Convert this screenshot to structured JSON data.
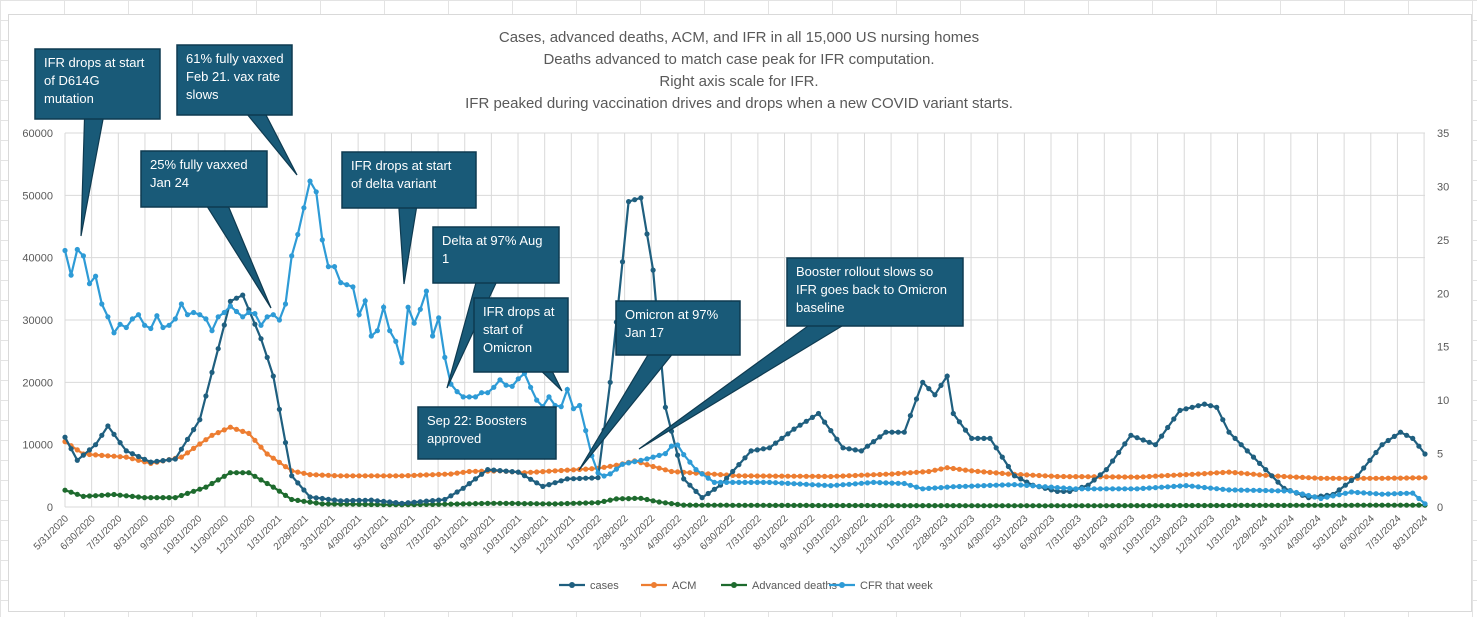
{
  "chart_data": {
    "type": "line",
    "title_lines": [
      "Cases, advanced deaths, ACM, and IFR in all 15,000 US nursing homes",
      "Deaths advanced to match case peak for IFR computation.",
      "Right axis scale for IFR.",
      "IFR peaked during vaccination drives and drops when a new COVID variant starts."
    ],
    "y_left": {
      "min": 0,
      "max": 60000,
      "ticks": [
        0,
        10000,
        20000,
        30000,
        40000,
        50000,
        60000
      ]
    },
    "y_right": {
      "min": 0,
      "max": 35,
      "ticks": [
        0,
        5,
        10,
        15,
        20,
        25,
        30,
        35
      ]
    },
    "x_tick_labels": [
      "5/31/2020",
      "6/30/2020",
      "7/31/2020",
      "8/31/2020",
      "9/30/2020",
      "10/31/2020",
      "11/30/2020",
      "12/31/2020",
      "1/31/2021",
      "2/28/2021",
      "3/31/2021",
      "4/30/2021",
      "5/31/2021",
      "6/30/2021",
      "7/31/2021",
      "8/31/2021",
      "9/30/2021",
      "10/31/2021",
      "11/30/2021",
      "12/31/2021",
      "1/31/2022",
      "2/28/2022",
      "3/31/2022",
      "4/30/2022",
      "5/31/2022",
      "6/30/2022",
      "7/31/2022",
      "8/31/2022",
      "9/30/2022",
      "10/31/2022",
      "11/30/2022",
      "12/31/2022",
      "1/31/2023",
      "2/28/2023",
      "3/31/2023",
      "4/30/2023",
      "5/31/2023",
      "6/30/2023",
      "7/31/2023",
      "8/31/2023",
      "9/30/2023",
      "10/31/2023",
      "11/30/2023",
      "12/31/2023",
      "1/31/2024",
      "2/29/2024",
      "3/31/2024",
      "4/30/2024",
      "5/31/2024",
      "6/30/2024",
      "7/31/2024",
      "8/31/2024"
    ],
    "grid": true,
    "legend_position": "bottom",
    "series": [
      {
        "name": "cases",
        "axis": "left",
        "color": "#1f5f7f",
        "keyframes": [
          [
            0,
            11200
          ],
          [
            2,
            7500
          ],
          [
            5,
            10000
          ],
          [
            7,
            13000
          ],
          [
            10,
            9000
          ],
          [
            14,
            7200
          ],
          [
            18,
            7700
          ],
          [
            22,
            14000
          ],
          [
            27,
            33000
          ],
          [
            29,
            34000
          ],
          [
            32,
            27000
          ],
          [
            34,
            21000
          ],
          [
            37,
            5000
          ],
          [
            40,
            1600
          ],
          [
            45,
            1000
          ],
          [
            50,
            1100
          ],
          [
            55,
            600
          ],
          [
            62,
            1200
          ],
          [
            65,
            3000
          ],
          [
            69,
            6000
          ],
          [
            74,
            5600
          ],
          [
            78,
            3300
          ],
          [
            82,
            4500
          ],
          [
            87,
            4700
          ],
          [
            89,
            20000
          ],
          [
            92,
            49000
          ],
          [
            94,
            49600
          ],
          [
            96,
            38000
          ],
          [
            98,
            16000
          ],
          [
            101,
            4500
          ],
          [
            104,
            1500
          ],
          [
            107,
            3500
          ],
          [
            112,
            9000
          ],
          [
            115,
            9500
          ],
          [
            119,
            12500
          ],
          [
            123,
            15000
          ],
          [
            127,
            9500
          ],
          [
            130,
            9000
          ],
          [
            134,
            12000
          ],
          [
            137,
            12000
          ],
          [
            140,
            20000
          ],
          [
            142,
            18000
          ],
          [
            144,
            21000
          ],
          [
            145,
            15000
          ],
          [
            148,
            11000
          ],
          [
            151,
            11000
          ],
          [
            155,
            5000
          ],
          [
            158,
            3500
          ],
          [
            162,
            2500
          ],
          [
            164,
            2500
          ],
          [
            167,
            3500
          ],
          [
            170,
            6000
          ],
          [
            174,
            11500
          ],
          [
            178,
            10000
          ],
          [
            182,
            15500
          ],
          [
            186,
            16500
          ],
          [
            188,
            16000
          ],
          [
            190,
            12000
          ],
          [
            195,
            7000
          ],
          [
            199,
            3000
          ],
          [
            203,
            1500
          ],
          [
            207,
            2000
          ],
          [
            211,
            5000
          ],
          [
            215,
            10000
          ],
          [
            218,
            12000
          ],
          [
            220,
            11000
          ],
          [
            222,
            8500
          ]
        ]
      },
      {
        "name": "ACM",
        "axis": "left",
        "color": "#ed7d31",
        "keyframes": [
          [
            0,
            10500
          ],
          [
            3,
            8500
          ],
          [
            10,
            8000
          ],
          [
            14,
            7000
          ],
          [
            19,
            8000
          ],
          [
            24,
            11500
          ],
          [
            27,
            12800
          ],
          [
            30,
            11800
          ],
          [
            33,
            8500
          ],
          [
            37,
            5800
          ],
          [
            40,
            5200
          ],
          [
            45,
            5000
          ],
          [
            55,
            5000
          ],
          [
            63,
            5300
          ],
          [
            66,
            5700
          ],
          [
            71,
            5800
          ],
          [
            75,
            5500
          ],
          [
            80,
            5800
          ],
          [
            87,
            6200
          ],
          [
            90,
            6700
          ],
          [
            93,
            7400
          ],
          [
            96,
            6500
          ],
          [
            99,
            5700
          ],
          [
            110,
            5000
          ],
          [
            125,
            4900
          ],
          [
            135,
            5300
          ],
          [
            141,
            5700
          ],
          [
            144,
            6300
          ],
          [
            148,
            5800
          ],
          [
            154,
            5300
          ],
          [
            162,
            4900
          ],
          [
            175,
            4800
          ],
          [
            185,
            5300
          ],
          [
            190,
            5600
          ],
          [
            197,
            5000
          ],
          [
            205,
            4600
          ],
          [
            215,
            4600
          ],
          [
            222,
            4700
          ]
        ]
      },
      {
        "name": "Advanced deaths",
        "axis": "left",
        "color": "#1e6b2e",
        "keyframes": [
          [
            0,
            2700
          ],
          [
            3,
            1700
          ],
          [
            8,
            2000
          ],
          [
            13,
            1500
          ],
          [
            18,
            1500
          ],
          [
            23,
            3200
          ],
          [
            27,
            5500
          ],
          [
            30,
            5500
          ],
          [
            34,
            3200
          ],
          [
            37,
            1200
          ],
          [
            42,
            500
          ],
          [
            55,
            350
          ],
          [
            65,
            500
          ],
          [
            70,
            600
          ],
          [
            80,
            500
          ],
          [
            87,
            700
          ],
          [
            90,
            1300
          ],
          [
            94,
            1400
          ],
          [
            97,
            800
          ],
          [
            101,
            300
          ],
          [
            120,
            250
          ],
          [
            160,
            200
          ],
          [
            222,
            300
          ]
        ]
      },
      {
        "name": "CFR that week",
        "axis": "right",
        "color": "#2e9bd6",
        "keyframes": [
          [
            0,
            24
          ],
          [
            1,
            21.7
          ],
          [
            2,
            24.1
          ],
          [
            3,
            23.5
          ],
          [
            4,
            20.9
          ],
          [
            5,
            21.6
          ],
          [
            6,
            19
          ],
          [
            7,
            17.8
          ],
          [
            8,
            16.3
          ],
          [
            9,
            17.1
          ],
          [
            10,
            16.8
          ],
          [
            11,
            17.6
          ],
          [
            12,
            18
          ],
          [
            13,
            17
          ],
          [
            14,
            16.7
          ],
          [
            15,
            17.9
          ],
          [
            16,
            16.8
          ],
          [
            17,
            17
          ],
          [
            18,
            17.6
          ],
          [
            19,
            19
          ],
          [
            20,
            18
          ],
          [
            21,
            18.2
          ],
          [
            22,
            18
          ],
          [
            23,
            17.6
          ],
          [
            24,
            16.5
          ],
          [
            25,
            17.8
          ],
          [
            26,
            18.2
          ],
          [
            27,
            18.8
          ],
          [
            28,
            18.3
          ],
          [
            29,
            17.8
          ],
          [
            30,
            18.2
          ],
          [
            31,
            18.1
          ],
          [
            32,
            17
          ],
          [
            33,
            17.8
          ],
          [
            34,
            18
          ],
          [
            35,
            17.5
          ],
          [
            36,
            19
          ],
          [
            37,
            23.5
          ],
          [
            38,
            25.5
          ],
          [
            39,
            28
          ],
          [
            40,
            30.5
          ],
          [
            41,
            29.5
          ],
          [
            42,
            25
          ],
          [
            43,
            22.5
          ],
          [
            44,
            22.5
          ],
          [
            45,
            21
          ],
          [
            46,
            20.8
          ],
          [
            47,
            20.6
          ],
          [
            48,
            18
          ],
          [
            49,
            19.3
          ],
          [
            50,
            16
          ],
          [
            51,
            16.5
          ],
          [
            52,
            18.7
          ],
          [
            53,
            16.5
          ],
          [
            54,
            15.5
          ],
          [
            55,
            13.5
          ],
          [
            56,
            18.7
          ],
          [
            57,
            17.2
          ],
          [
            58,
            18.5
          ],
          [
            59,
            20.2
          ],
          [
            60,
            16
          ],
          [
            61,
            17.7
          ],
          [
            62,
            14
          ],
          [
            63,
            11.5
          ],
          [
            64,
            10.8
          ],
          [
            65,
            10.3
          ],
          [
            66,
            10.3
          ],
          [
            67,
            10.3
          ],
          [
            68,
            10.7
          ],
          [
            69,
            10.7
          ],
          [
            70,
            11.2
          ],
          [
            71,
            11.9
          ],
          [
            72,
            11.4
          ],
          [
            73,
            11.3
          ],
          [
            74,
            12
          ],
          [
            75,
            12.5
          ],
          [
            76,
            11.2
          ],
          [
            77,
            10
          ],
          [
            78,
            9.4
          ],
          [
            79,
            10.3
          ],
          [
            80,
            9.5
          ],
          [
            81,
            9.4
          ],
          [
            82,
            11
          ],
          [
            83,
            9.2
          ],
          [
            84,
            9.5
          ],
          [
            86,
            4.8
          ],
          [
            87,
            3.2
          ],
          [
            88,
            2.9
          ],
          [
            89,
            3.1
          ],
          [
            91,
            4
          ],
          [
            95,
            4.5
          ],
          [
            98,
            5
          ],
          [
            99,
            5.7
          ],
          [
            100,
            5.8
          ],
          [
            101,
            4.9
          ],
          [
            103,
            3.5
          ],
          [
            106,
            2.3
          ],
          [
            115,
            2.3
          ],
          [
            125,
            2
          ],
          [
            132,
            2.3
          ],
          [
            137,
            2.2
          ],
          [
            140,
            1.7
          ],
          [
            145,
            1.9
          ],
          [
            155,
            2.1
          ],
          [
            165,
            1.7
          ],
          [
            175,
            1.7
          ],
          [
            183,
            2
          ],
          [
            190,
            1.6
          ],
          [
            200,
            1.5
          ],
          [
            205,
            0.8
          ],
          [
            210,
            1.4
          ],
          [
            215,
            1.2
          ],
          [
            220,
            1.3
          ],
          [
            221,
            0.8
          ],
          [
            222,
            0.3
          ]
        ]
      }
    ]
  },
  "callouts": [
    {
      "id": "callout-d614g",
      "lines": [
        "IFR drops at start",
        "of D614G",
        "mutation"
      ]
    },
    {
      "id": "callout-61pct",
      "lines": [
        "61% fully vaxxed",
        "Feb 21. vax rate",
        "slows"
      ]
    },
    {
      "id": "callout-25pct",
      "lines": [
        "25% fully vaxxed",
        "Jan 24"
      ]
    },
    {
      "id": "callout-delta-start",
      "lines": [
        "IFR drops at start",
        "of delta variant"
      ]
    },
    {
      "id": "callout-delta-97",
      "lines": [
        "Delta at 97% Aug",
        "1"
      ]
    },
    {
      "id": "callout-omicron-start",
      "lines": [
        "IFR drops at",
        "start of",
        "Omicron"
      ]
    },
    {
      "id": "callout-boosters",
      "lines": [
        "Sep 22: Boosters",
        "approved"
      ]
    },
    {
      "id": "callout-omicron-97",
      "lines": [
        "Omicron at 97%",
        "Jan 17"
      ]
    },
    {
      "id": "callout-booster-slows",
      "lines": [
        "Booster rollout slows so",
        "IFR goes back to  Omicron",
        "baseline"
      ]
    }
  ],
  "style": {
    "callout_fill": "#195a78",
    "callout_border": "#0e3a50",
    "grid_color": "#d9d9d9"
  }
}
